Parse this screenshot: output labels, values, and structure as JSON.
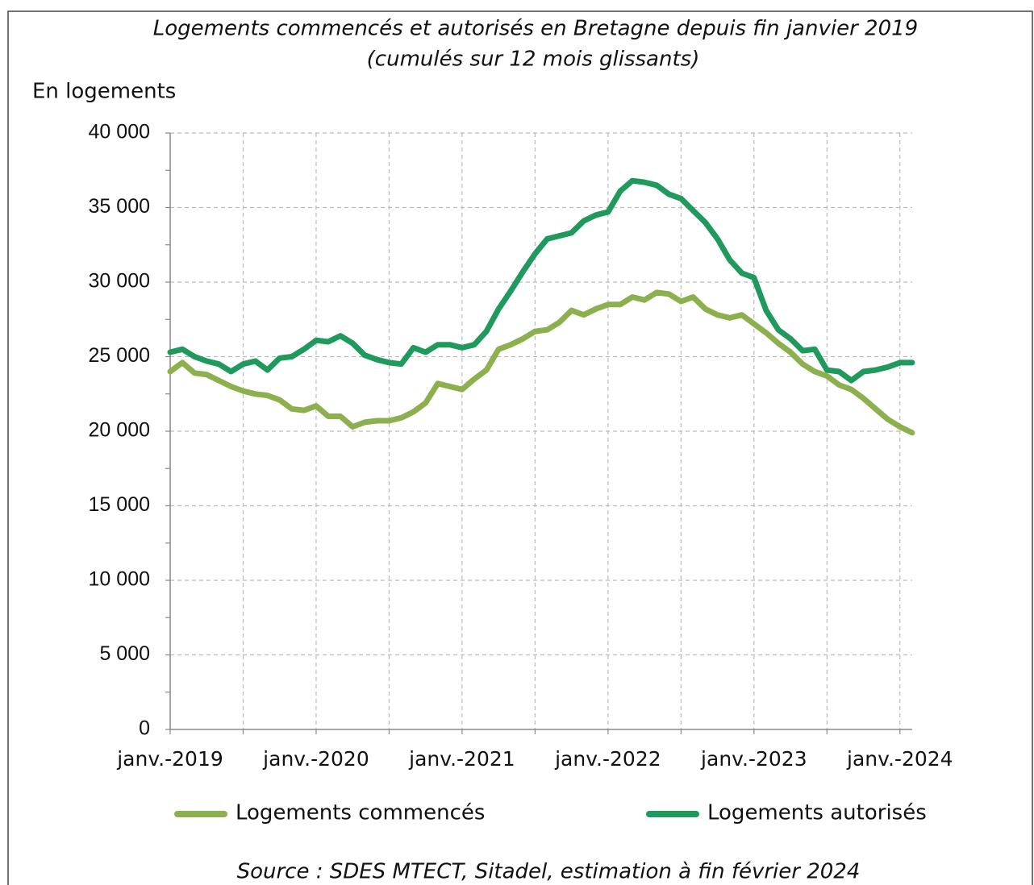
{
  "chart_data": {
    "type": "line",
    "title": "Logements commencés et autorisés en Bretagne depuis fin janvier 2019",
    "subtitle": "(cumulés sur 12 mois glissants)",
    "y_label": "En logements",
    "source": "Source : SDES MTECT, Sitadel, estimation à fin février 2024",
    "categories": [
      "janv.-2019",
      null,
      null,
      null,
      null,
      null,
      null,
      null,
      null,
      null,
      null,
      null,
      "janv.-2020",
      null,
      null,
      null,
      null,
      null,
      null,
      null,
      null,
      null,
      null,
      null,
      "janv.-2021",
      null,
      null,
      null,
      null,
      null,
      null,
      null,
      null,
      null,
      null,
      null,
      "janv.-2022",
      null,
      null,
      null,
      null,
      null,
      null,
      null,
      null,
      null,
      null,
      null,
      "janv.-2023",
      null,
      null,
      null,
      null,
      null,
      null,
      null,
      null,
      null,
      null,
      null,
      "janv.-2024",
      null
    ],
    "series": [
      {
        "name": "Logements commencés",
        "color": "#8db04f",
        "values": [
          24000,
          24600,
          23900,
          23800,
          23400,
          23000,
          22700,
          22500,
          22400,
          22100,
          21500,
          21400,
          21700,
          21000,
          21000,
          20300,
          20600,
          20700,
          20700,
          20900,
          21300,
          21900,
          23200,
          23000,
          22800,
          23500,
          24100,
          25500,
          25800,
          26200,
          26700,
          26800,
          27300,
          28100,
          27800,
          28200,
          28500,
          28500,
          29000,
          28800,
          29300,
          29200,
          28700,
          29000,
          28200,
          27800,
          27600,
          27800,
          27200,
          26600,
          25900,
          25300,
          24500,
          24000,
          23700,
          23100,
          22800,
          22200,
          21500,
          20800,
          20300,
          19900
        ]
      },
      {
        "name": "Logements autorisés",
        "color": "#1f9a5c",
        "values": [
          25300,
          25500,
          25000,
          24700,
          24500,
          24000,
          24500,
          24700,
          24100,
          24900,
          25000,
          25500,
          26100,
          26000,
          26400,
          25900,
          25100,
          24800,
          24600,
          24500,
          25600,
          25300,
          25800,
          25800,
          25600,
          25800,
          26700,
          28200,
          29400,
          30700,
          31900,
          32900,
          33100,
          33300,
          34100,
          34500,
          34700,
          36100,
          36800,
          36700,
          36500,
          35900,
          35600,
          34800,
          34000,
          32900,
          31500,
          30600,
          30300,
          28100,
          26800,
          26200,
          25400,
          25500,
          24100,
          24000,
          23400,
          24000,
          24100,
          24300,
          24600,
          24600
        ]
      }
    ],
    "ylim": [
      0,
      40000
    ],
    "yticks": [
      0,
      {
        "value": 5000,
        "label": "5 000"
      },
      {
        "value": 10000,
        "label": "10 000"
      },
      {
        "value": 15000,
        "label": "15 000"
      },
      {
        "value": 20000,
        "label": "20 000"
      },
      {
        "value": 25000,
        "label": "25 000"
      },
      {
        "value": 30000,
        "label": "30 000"
      },
      {
        "value": 35000,
        "label": "35 000"
      },
      {
        "value": 40000,
        "label": "40 000"
      }
    ],
    "grid": true
  }
}
